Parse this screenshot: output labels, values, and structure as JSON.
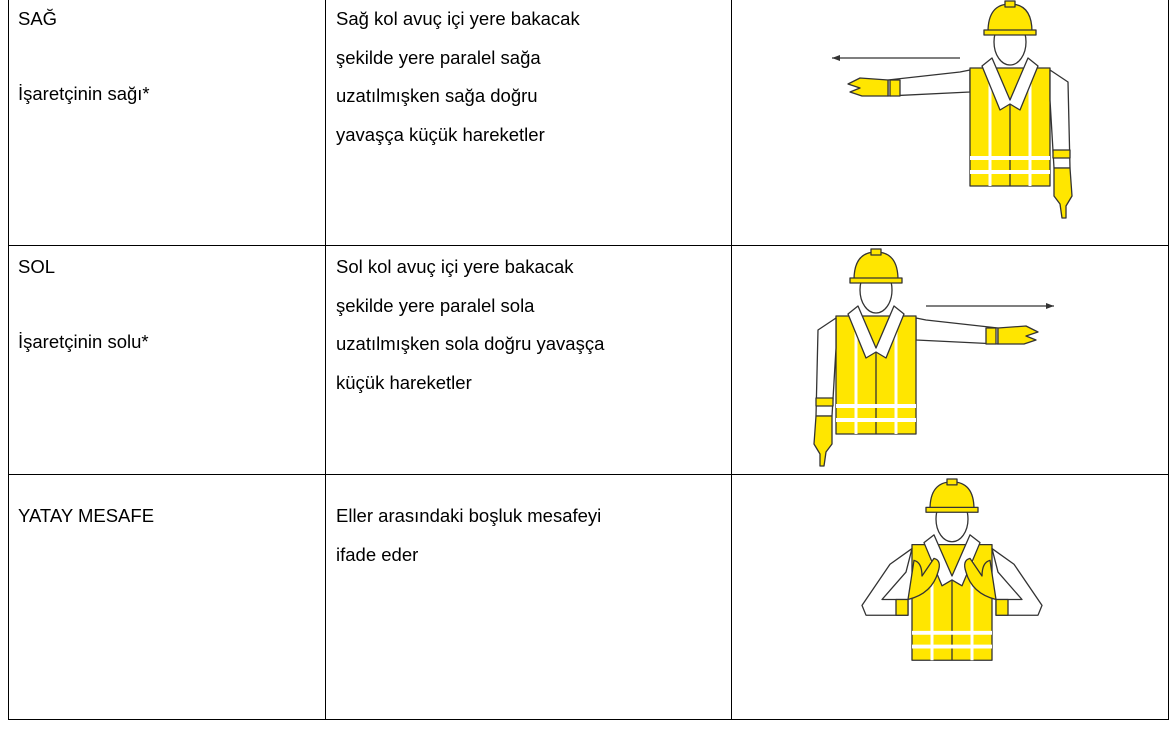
{
  "table": {
    "rows": [
      {
        "signal": "SAĞ",
        "note": "İşaretçinin sağı*",
        "description": [
          "Sağ kol avuç içi yere bakacak",
          "şekilde yere paralel sağa",
          "uzatılmışken sağa doğru",
          "yavaşça küçük hareketler"
        ]
      },
      {
        "signal": "SOL",
        "note": "İşaretçinin solu*",
        "description": [
          "Sol kol avuç içi yere bakacak",
          "şekilde yere paralel sola",
          "uzatılmışken sola doğru yavaşça",
          "küçük hareketler"
        ]
      },
      {
        "signal": "YATAY MESAFE",
        "description": [
          "Eller arasındaki boşluk mesafeyi",
          "ifade eder"
        ]
      }
    ]
  }
}
